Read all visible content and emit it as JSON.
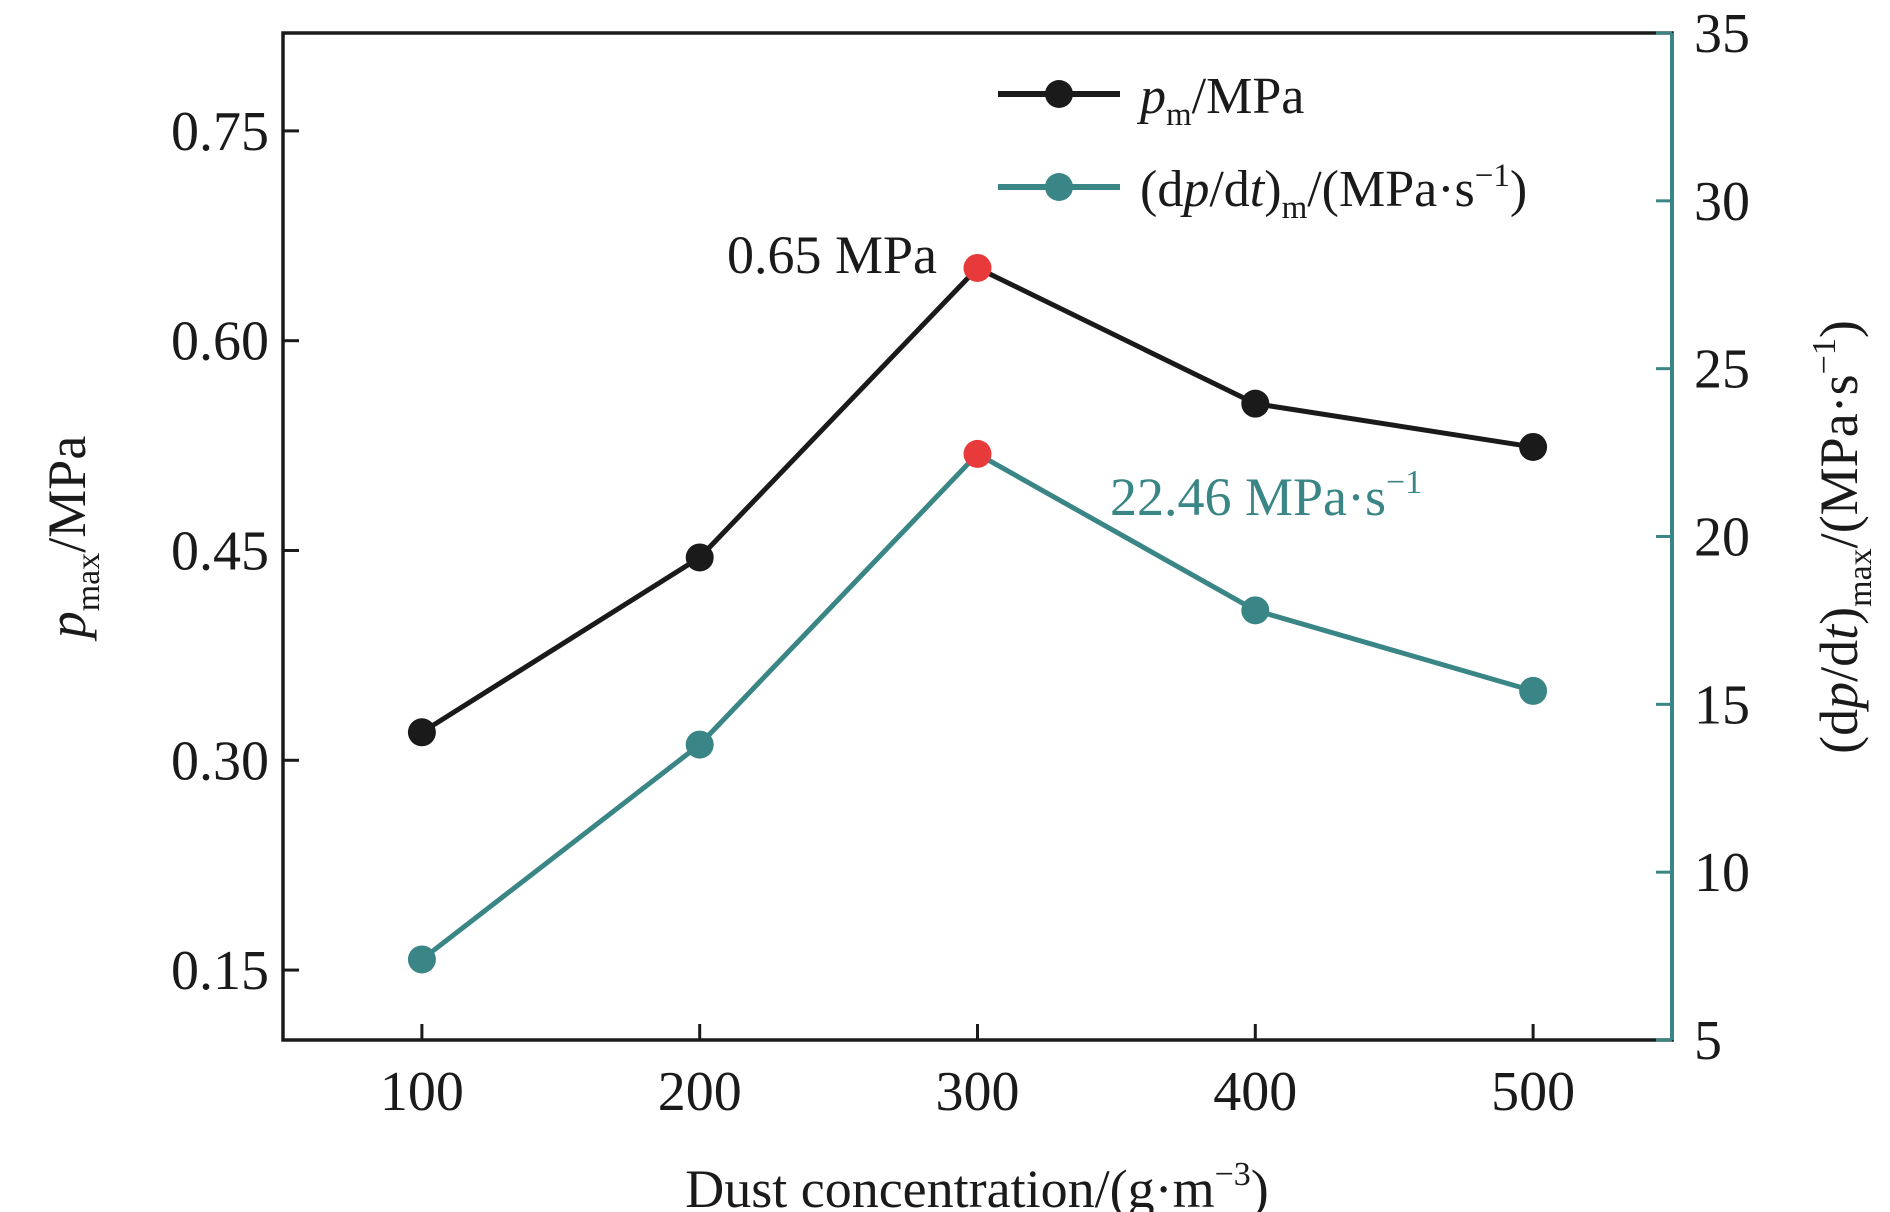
{
  "chart_data": {
    "type": "line",
    "x": [
      100,
      200,
      300,
      400,
      500
    ],
    "xlim": [
      50,
      550
    ],
    "xticks": [
      100,
      200,
      300,
      400,
      500
    ],
    "xlabel_main": "Dust concentration/(g·m",
    "xlabel_sup": "−3",
    "xlabel_close": ")",
    "y_left": {
      "label_p": "p",
      "label_sub": "max",
      "label_tail": "/MPa",
      "lim": [
        0.1,
        0.82
      ],
      "ticks": [
        "0.15",
        "0.30",
        "0.45",
        "0.60",
        "0.75"
      ]
    },
    "y_right": {
      "label_open": "(d",
      "label_p": "p",
      "label_mid": "/d",
      "label_t": "t",
      "label_close": ")",
      "label_sub": "max",
      "label_tail": "/(MPa·s",
      "label_sup": "−1",
      "label_end": ")",
      "lim": [
        5,
        35
      ],
      "ticks": [
        "5",
        "10",
        "15",
        "20",
        "25",
        "30",
        "35"
      ]
    },
    "series": [
      {
        "key": "pm",
        "axis": "left",
        "color": "#1a1a1a",
        "values": [
          0.32,
          0.445,
          0.652,
          0.555,
          0.524
        ],
        "legend": {
          "p": "p",
          "sub": "m",
          "tail": "/MPa"
        }
      },
      {
        "key": "dpdt",
        "axis": "right",
        "color": "#3a8585",
        "values": [
          7.4,
          13.8,
          22.46,
          17.8,
          15.4
        ],
        "legend": {
          "open": "(d",
          "p": "p",
          "mid": "/d",
          "t": "t",
          "close": ")",
          "sub": "m",
          "tail": "/(MPa·s",
          "sup": "−1",
          "end": ")"
        }
      }
    ],
    "highlight_color": "#e83a3a",
    "annotations": [
      {
        "series": "pm",
        "text": "0.65 MPa"
      },
      {
        "series": "dpdt",
        "text": "22.46 MPa·s",
        "sup": "−1"
      }
    ],
    "legend_placement": "top-right",
    "grid": false
  }
}
